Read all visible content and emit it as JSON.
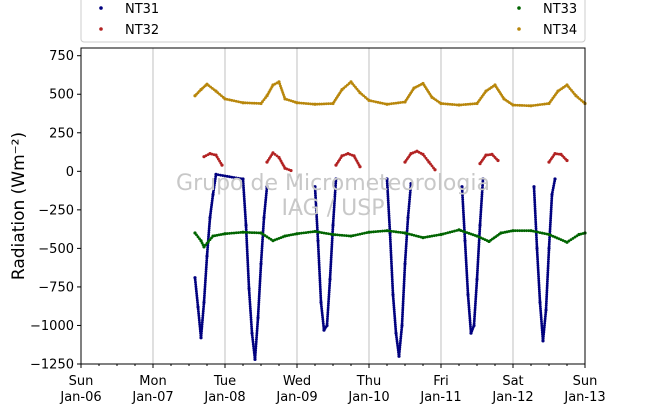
{
  "chart_data": {
    "type": "scatter",
    "title": "",
    "xlabel": "",
    "ylabel": "Radiation (Wm⁻²)",
    "ylim": [
      -1250,
      800
    ],
    "yticks": [
      -1250,
      -1000,
      -750,
      -500,
      -250,
      0,
      250,
      500,
      750
    ],
    "ytick_labels": [
      "−1250",
      "−1000",
      "−750",
      "−500",
      "−250",
      "0",
      "250",
      "500",
      "750"
    ],
    "xlim": [
      "2019-01-06",
      "2019-01-13"
    ],
    "xticks": [
      {
        "date": "2019-01-06",
        "day": "Sun",
        "label": "Jan-06"
      },
      {
        "date": "2019-01-07",
        "day": "Mon",
        "label": "Jan-07"
      },
      {
        "date": "2019-01-08",
        "day": "Tue",
        "label": "Jan-08"
      },
      {
        "date": "2019-01-09",
        "day": "Wed",
        "label": "Jan-09"
      },
      {
        "date": "2019-01-10",
        "day": "Thu",
        "label": "Jan-10"
      },
      {
        "date": "2019-01-11",
        "day": "Fri",
        "label": "Jan-11"
      },
      {
        "date": "2019-01-12",
        "day": "Sat",
        "label": "Jan-12"
      },
      {
        "date": "2019-01-13",
        "day": "Sun",
        "label": "Jan-13"
      }
    ],
    "grid": "vertical",
    "legend": "top",
    "watermark": [
      "Grupo de Micrometeorologia",
      "IAG / USP"
    ],
    "series": [
      {
        "name": "NT31",
        "color": "#00007f",
        "points": [
          [
            "2019-01-07T14:00",
            -690
          ],
          [
            "2019-01-07T15:00",
            -880
          ],
          [
            "2019-01-07T16:00",
            -1080
          ],
          [
            "2019-01-07T17:00",
            -850
          ],
          [
            "2019-01-07T18:00",
            -550
          ],
          [
            "2019-01-07T19:00",
            -300
          ],
          [
            "2019-01-07T20:00",
            -150
          ],
          [
            "2019-01-07T21:00",
            -20
          ],
          [
            "2019-01-08T06:00",
            -50
          ],
          [
            "2019-01-08T07:00",
            -350
          ],
          [
            "2019-01-08T08:00",
            -760
          ],
          [
            "2019-01-08T09:00",
            -1050
          ],
          [
            "2019-01-08T10:00",
            -1220
          ],
          [
            "2019-01-08T11:00",
            -950
          ],
          [
            "2019-01-08T12:00",
            -600
          ],
          [
            "2019-01-08T13:00",
            -300
          ],
          [
            "2019-01-08T14:00",
            -100
          ],
          [
            "2019-01-09T06:00",
            -100
          ],
          [
            "2019-01-09T07:00",
            -450
          ],
          [
            "2019-01-09T08:00",
            -850
          ],
          [
            "2019-01-09T09:00",
            -1030
          ],
          [
            "2019-01-09T10:00",
            -1000
          ],
          [
            "2019-01-09T11:00",
            -700
          ],
          [
            "2019-01-09T12:00",
            -350
          ],
          [
            "2019-01-09T13:00",
            -50
          ],
          [
            "2019-01-10T06:00",
            -50
          ],
          [
            "2019-01-10T07:00",
            -400
          ],
          [
            "2019-01-10T08:00",
            -800
          ],
          [
            "2019-01-10T09:00",
            -1050
          ],
          [
            "2019-01-10T10:00",
            -1200
          ],
          [
            "2019-01-10T11:00",
            -1000
          ],
          [
            "2019-01-10T12:00",
            -600
          ],
          [
            "2019-01-10T13:00",
            -300
          ],
          [
            "2019-01-10T14:00",
            -80
          ],
          [
            "2019-01-11T07:00",
            -100
          ],
          [
            "2019-01-11T08:00",
            -450
          ],
          [
            "2019-01-11T09:00",
            -800
          ],
          [
            "2019-01-11T10:00",
            -1050
          ],
          [
            "2019-01-11T11:00",
            -1000
          ],
          [
            "2019-01-11T12:00",
            -700
          ],
          [
            "2019-01-11T13:00",
            -350
          ],
          [
            "2019-01-11T14:00",
            -50
          ],
          [
            "2019-01-12T07:00",
            -100
          ],
          [
            "2019-01-12T08:00",
            -500
          ],
          [
            "2019-01-12T09:00",
            -850
          ],
          [
            "2019-01-12T10:00",
            -1100
          ],
          [
            "2019-01-12T11:00",
            -900
          ],
          [
            "2019-01-12T12:00",
            -500
          ],
          [
            "2019-01-12T13:00",
            -150
          ],
          [
            "2019-01-12T14:00",
            -50
          ]
        ]
      },
      {
        "name": "NT32",
        "color": "#b22222",
        "points": [
          [
            "2019-01-07T17:00",
            95
          ],
          [
            "2019-01-07T19:00",
            115
          ],
          [
            "2019-01-07T21:00",
            105
          ],
          [
            "2019-01-07T23:00",
            40
          ],
          [
            "2019-01-08T14:00",
            60
          ],
          [
            "2019-01-08T16:00",
            120
          ],
          [
            "2019-01-08T18:00",
            90
          ],
          [
            "2019-01-08T20:00",
            20
          ],
          [
            "2019-01-08T22:00",
            5
          ],
          [
            "2019-01-09T13:00",
            40
          ],
          [
            "2019-01-09T15:00",
            100
          ],
          [
            "2019-01-09T17:00",
            115
          ],
          [
            "2019-01-09T19:00",
            100
          ],
          [
            "2019-01-09T21:00",
            30
          ],
          [
            "2019-01-10T12:00",
            60
          ],
          [
            "2019-01-10T14:00",
            115
          ],
          [
            "2019-01-10T16:00",
            130
          ],
          [
            "2019-01-10T18:00",
            110
          ],
          [
            "2019-01-10T20:00",
            60
          ],
          [
            "2019-01-10T22:00",
            10
          ],
          [
            "2019-01-11T13:00",
            50
          ],
          [
            "2019-01-11T15:00",
            105
          ],
          [
            "2019-01-11T17:00",
            110
          ],
          [
            "2019-01-11T19:00",
            70
          ],
          [
            "2019-01-12T12:00",
            60
          ],
          [
            "2019-01-12T14:00",
            115
          ],
          [
            "2019-01-12T16:00",
            110
          ],
          [
            "2019-01-12T18:00",
            70
          ]
        ]
      },
      {
        "name": "NT33",
        "color": "#006400",
        "points": [
          [
            "2019-01-07T14:00",
            -400
          ],
          [
            "2019-01-07T16:00",
            -450
          ],
          [
            "2019-01-07T17:00",
            -490
          ],
          [
            "2019-01-07T20:00",
            -420
          ],
          [
            "2019-01-08T00:00",
            -405
          ],
          [
            "2019-01-08T06:00",
            -395
          ],
          [
            "2019-01-08T12:00",
            -400
          ],
          [
            "2019-01-08T16:00",
            -450
          ],
          [
            "2019-01-08T20:00",
            -420
          ],
          [
            "2019-01-09T00:00",
            -405
          ],
          [
            "2019-01-09T06:00",
            -390
          ],
          [
            "2019-01-09T12:00",
            -410
          ],
          [
            "2019-01-09T18:00",
            -420
          ],
          [
            "2019-01-10T00:00",
            -395
          ],
          [
            "2019-01-10T06:00",
            -385
          ],
          [
            "2019-01-10T12:00",
            -400
          ],
          [
            "2019-01-10T18:00",
            -430
          ],
          [
            "2019-01-11T00:00",
            -410
          ],
          [
            "2019-01-11T06:00",
            -380
          ],
          [
            "2019-01-11T12:00",
            -420
          ],
          [
            "2019-01-11T16:00",
            -455
          ],
          [
            "2019-01-11T20:00",
            -400
          ],
          [
            "2019-01-12T00:00",
            -385
          ],
          [
            "2019-01-12T06:00",
            -385
          ],
          [
            "2019-01-12T12:00",
            -410
          ],
          [
            "2019-01-12T18:00",
            -460
          ],
          [
            "2019-01-12T22:00",
            -410
          ],
          [
            "2019-01-13T00:00",
            -400
          ]
        ]
      },
      {
        "name": "NT34",
        "color": "#b8860b",
        "points": [
          [
            "2019-01-07T14:00",
            490
          ],
          [
            "2019-01-07T16:00",
            530
          ],
          [
            "2019-01-07T18:00",
            565
          ],
          [
            "2019-01-07T21:00",
            520
          ],
          [
            "2019-01-08T00:00",
            470
          ],
          [
            "2019-01-08T06:00",
            445
          ],
          [
            "2019-01-08T12:00",
            440
          ],
          [
            "2019-01-08T14:00",
            490
          ],
          [
            "2019-01-08T16:00",
            560
          ],
          [
            "2019-01-08T18:00",
            580
          ],
          [
            "2019-01-08T20:00",
            470
          ],
          [
            "2019-01-09T00:00",
            445
          ],
          [
            "2019-01-09T06:00",
            435
          ],
          [
            "2019-01-09T12:00",
            440
          ],
          [
            "2019-01-09T15:00",
            530
          ],
          [
            "2019-01-09T18:00",
            580
          ],
          [
            "2019-01-09T21:00",
            510
          ],
          [
            "2019-01-10T00:00",
            460
          ],
          [
            "2019-01-10T06:00",
            435
          ],
          [
            "2019-01-10T12:00",
            450
          ],
          [
            "2019-01-10T15:00",
            540
          ],
          [
            "2019-01-10T18:00",
            570
          ],
          [
            "2019-01-10T21:00",
            480
          ],
          [
            "2019-01-11T00:00",
            440
          ],
          [
            "2019-01-11T06:00",
            430
          ],
          [
            "2019-01-11T12:00",
            440
          ],
          [
            "2019-01-11T15:00",
            520
          ],
          [
            "2019-01-11T18:00",
            560
          ],
          [
            "2019-01-11T21:00",
            470
          ],
          [
            "2019-01-12T00:00",
            430
          ],
          [
            "2019-01-12T06:00",
            425
          ],
          [
            "2019-01-12T12:00",
            440
          ],
          [
            "2019-01-12T15:00",
            520
          ],
          [
            "2019-01-12T18:00",
            560
          ],
          [
            "2019-01-12T21:00",
            490
          ],
          [
            "2019-01-13T00:00",
            440
          ]
        ]
      }
    ]
  }
}
